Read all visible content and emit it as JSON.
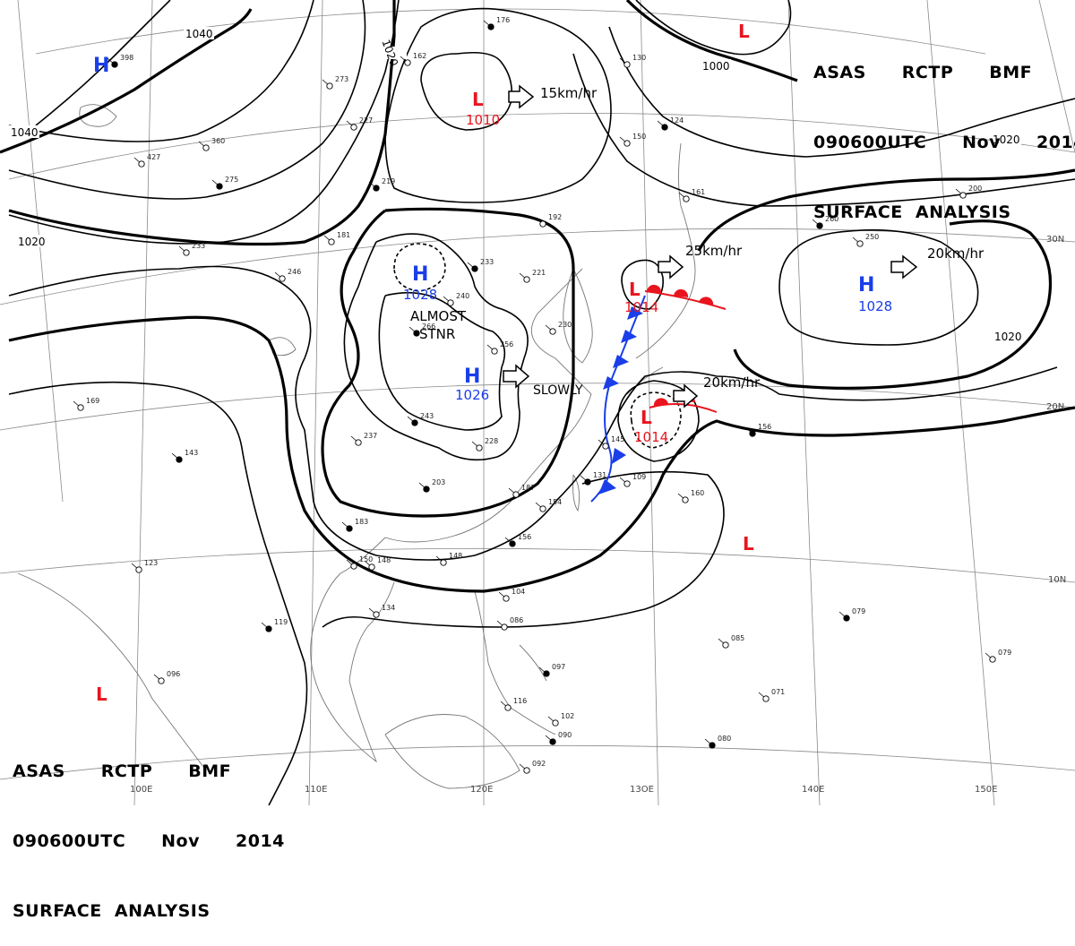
{
  "header": {
    "line1": [
      "ASAS",
      "RCTP",
      "BMF"
    ],
    "line2": [
      "090600UTC",
      "Nov",
      "2014"
    ],
    "line3": "SURFACE  ANALYSIS"
  },
  "pressure_centers": [
    {
      "type": "H",
      "value": "",
      "color": "#1a3ee8",
      "label_color": "#1a3ee8"
    },
    {
      "type": "H",
      "value": "1028",
      "color": "#1a3ee8",
      "label_color": "#1a3ee8"
    },
    {
      "type": "H",
      "value": "1026",
      "color": "#1a3ee8",
      "label_color": "#1a3ee8"
    },
    {
      "type": "H",
      "value": "1028",
      "color": "#1a3ee8",
      "label_color": "#1a3ee8"
    },
    {
      "type": "L",
      "value": "1010",
      "color": "#e8141e",
      "label_color": "#e8141e"
    },
    {
      "type": "L",
      "value": "1014",
      "color": "#e8141e",
      "label_color": "#e8141e"
    },
    {
      "type": "L",
      "value": "1014",
      "color": "#e8141e",
      "label_color": "#e8141e"
    },
    {
      "type": "L",
      "value": "",
      "color": "#e8141e",
      "label_color": "#e8141e"
    },
    {
      "type": "L",
      "value": "",
      "color": "#e8141e",
      "label_color": "#e8141e"
    },
    {
      "type": "L",
      "value": "",
      "color": "#e8141e",
      "label_color": "#e8141e"
    }
  ],
  "movement_labels": [
    "15km/hr",
    "25km/hr",
    "20km/hr",
    "20km/hr",
    "SLOWLY"
  ],
  "annotation": {
    "line1": "ALMOST",
    "line2": "STNR"
  },
  "isobar_labels": [
    "1040",
    "1040",
    "1020",
    "1020",
    "1000",
    "1020",
    "1020"
  ],
  "longitude_labels": [
    "100E",
    "110E",
    "120E",
    "13OE",
    "140E",
    "150E"
  ],
  "latitude_labels": [
    "30N",
    "20N",
    "10N"
  ],
  "colors": {
    "high": "#1a3ee8",
    "low": "#e8141e",
    "cold_front": "#1a3ee8",
    "warm_front": "#e8141e"
  },
  "stations": [
    {
      "p": "398"
    },
    {
      "p": "273"
    },
    {
      "p": "162"
    },
    {
      "p": "176"
    },
    {
      "p": "130"
    },
    {
      "p": "150"
    },
    {
      "p": "124"
    },
    {
      "p": "161"
    },
    {
      "p": "200"
    },
    {
      "p": "260"
    },
    {
      "p": "250"
    },
    {
      "p": "221"
    },
    {
      "p": "233"
    },
    {
      "p": "192"
    },
    {
      "p": "240"
    },
    {
      "p": "266"
    },
    {
      "p": "256"
    },
    {
      "p": "230"
    },
    {
      "p": "243"
    },
    {
      "p": "228"
    },
    {
      "p": "237"
    },
    {
      "p": "203"
    },
    {
      "p": "187"
    },
    {
      "p": "154"
    },
    {
      "p": "156"
    },
    {
      "p": "148"
    },
    {
      "p": "145"
    },
    {
      "p": "131"
    },
    {
      "p": "109"
    },
    {
      "p": "160"
    },
    {
      "p": "156"
    },
    {
      "p": "148"
    },
    {
      "p": "150"
    },
    {
      "p": "183"
    },
    {
      "p": "123"
    },
    {
      "p": "134"
    },
    {
      "p": "119"
    },
    {
      "p": "104"
    },
    {
      "p": "086"
    },
    {
      "p": "097"
    },
    {
      "p": "102"
    },
    {
      "p": "092"
    },
    {
      "p": "090"
    },
    {
      "p": "116"
    },
    {
      "p": "085"
    },
    {
      "p": "079"
    },
    {
      "p": "071"
    },
    {
      "p": "079"
    },
    {
      "p": "080"
    },
    {
      "p": "096"
    },
    {
      "p": "169"
    },
    {
      "p": "143"
    },
    {
      "p": "246"
    },
    {
      "p": "233"
    },
    {
      "p": "275"
    },
    {
      "p": "427"
    },
    {
      "p": "360"
    },
    {
      "p": "219"
    },
    {
      "p": "227"
    },
    {
      "p": "181"
    }
  ]
}
